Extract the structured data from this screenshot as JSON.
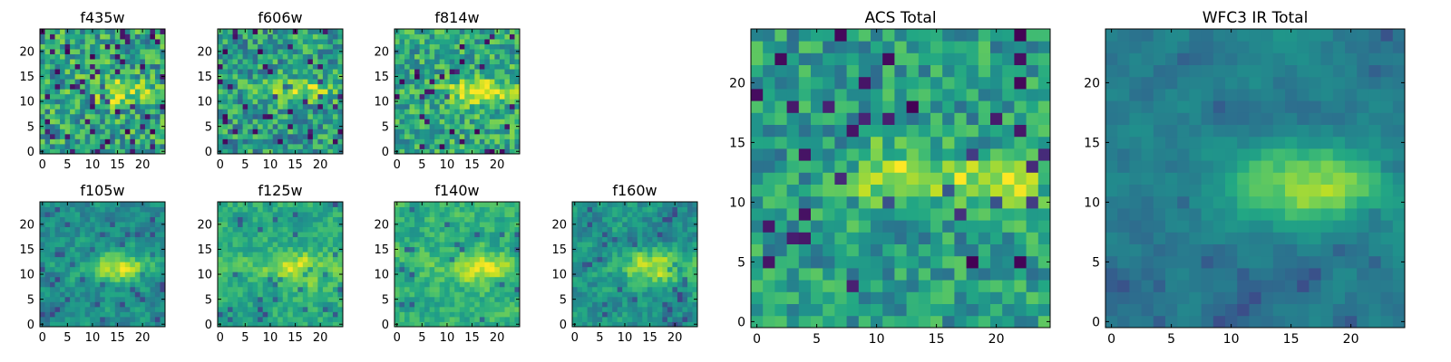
{
  "chart_data": [
    {
      "type": "heatmap",
      "title": "f435w",
      "grid_size": 25,
      "xlim": [
        0,
        24
      ],
      "ylim": [
        0,
        24
      ],
      "xticks": [
        0,
        5,
        10,
        15,
        20
      ],
      "yticks": [
        0,
        5,
        10,
        15,
        20
      ],
      "colormap": "viridis",
      "bright_features": [
        {
          "x": [
            10,
            21
          ],
          "y": [
            10,
            14
          ]
        }
      ]
    },
    {
      "type": "heatmap",
      "title": "f606w",
      "grid_size": 25,
      "xlim": [
        0,
        24
      ],
      "ylim": [
        0,
        24
      ],
      "xticks": [
        0,
        5,
        10,
        15,
        20
      ],
      "yticks": [
        0,
        5,
        10,
        15,
        20
      ],
      "colormap": "viridis",
      "bright_features": [
        {
          "x": [
            9,
            23
          ],
          "y": [
            11,
            14
          ]
        }
      ]
    },
    {
      "type": "heatmap",
      "title": "f814w",
      "grid_size": 25,
      "xlim": [
        0,
        24
      ],
      "ylim": [
        0,
        24
      ],
      "xticks": [
        0,
        5,
        10,
        15,
        20
      ],
      "yticks": [
        0,
        5,
        10,
        15,
        20
      ],
      "colormap": "viridis",
      "bright_features": [
        {
          "x": [
            10,
            23
          ],
          "y": [
            10,
            14
          ]
        }
      ]
    },
    {
      "type": "heatmap",
      "title": "f105w",
      "grid_size": 25,
      "xlim": [
        0,
        24
      ],
      "ylim": [
        0,
        24
      ],
      "xticks": [
        0,
        5,
        10,
        15,
        20
      ],
      "yticks": [
        0,
        5,
        10,
        15,
        20
      ],
      "colormap": "viridis",
      "bright_features": [
        {
          "x": [
            9,
            22
          ],
          "y": [
            9,
            14
          ]
        }
      ]
    },
    {
      "type": "heatmap",
      "title": "f125w",
      "grid_size": 25,
      "xlim": [
        0,
        24
      ],
      "ylim": [
        0,
        24
      ],
      "xticks": [
        0,
        5,
        10,
        15,
        20
      ],
      "yticks": [
        0,
        5,
        10,
        15,
        20
      ],
      "colormap": "viridis",
      "bright_features": [
        {
          "x": [
            9,
            23
          ],
          "y": [
            8,
            14
          ]
        }
      ]
    },
    {
      "type": "heatmap",
      "title": "f140w",
      "grid_size": 25,
      "xlim": [
        0,
        24
      ],
      "ylim": [
        0,
        24
      ],
      "xticks": [
        0,
        5,
        10,
        15,
        20
      ],
      "yticks": [
        0,
        5,
        10,
        15,
        20
      ],
      "colormap": "viridis",
      "bright_features": [
        {
          "x": [
            10,
            23
          ],
          "y": [
            9,
            14
          ]
        }
      ]
    },
    {
      "type": "heatmap",
      "title": "f160w",
      "grid_size": 25,
      "xlim": [
        0,
        24
      ],
      "ylim": [
        0,
        24
      ],
      "xticks": [
        0,
        5,
        10,
        15,
        20
      ],
      "yticks": [
        0,
        5,
        10,
        15,
        20
      ],
      "colormap": "viridis",
      "bright_features": [
        {
          "x": [
            10,
            23
          ],
          "y": [
            9,
            14
          ]
        }
      ]
    },
    {
      "type": "heatmap",
      "title": "ACS Total",
      "grid_size": 25,
      "xlim": [
        0,
        24
      ],
      "ylim": [
        0,
        24
      ],
      "xticks": [
        0,
        5,
        10,
        15,
        20
      ],
      "yticks": [
        0,
        5,
        10,
        15,
        20
      ],
      "colormap": "viridis",
      "bright_features": [
        {
          "x": [
            9,
            14
          ],
          "y": [
            10,
            14
          ]
        },
        {
          "x": [
            16,
            23
          ],
          "y": [
            10,
            13
          ]
        }
      ]
    },
    {
      "type": "heatmap",
      "title": "WFC3 IR Total",
      "grid_size": 25,
      "xlim": [
        0,
        24
      ],
      "ylim": [
        0,
        24
      ],
      "xticks": [
        0,
        5,
        10,
        15,
        20
      ],
      "yticks": [
        0,
        5,
        10,
        15,
        20
      ],
      "colormap": "viridis",
      "bright_features": [
        {
          "x": [
            10,
            23
          ],
          "y": [
            9,
            14
          ]
        }
      ]
    }
  ]
}
